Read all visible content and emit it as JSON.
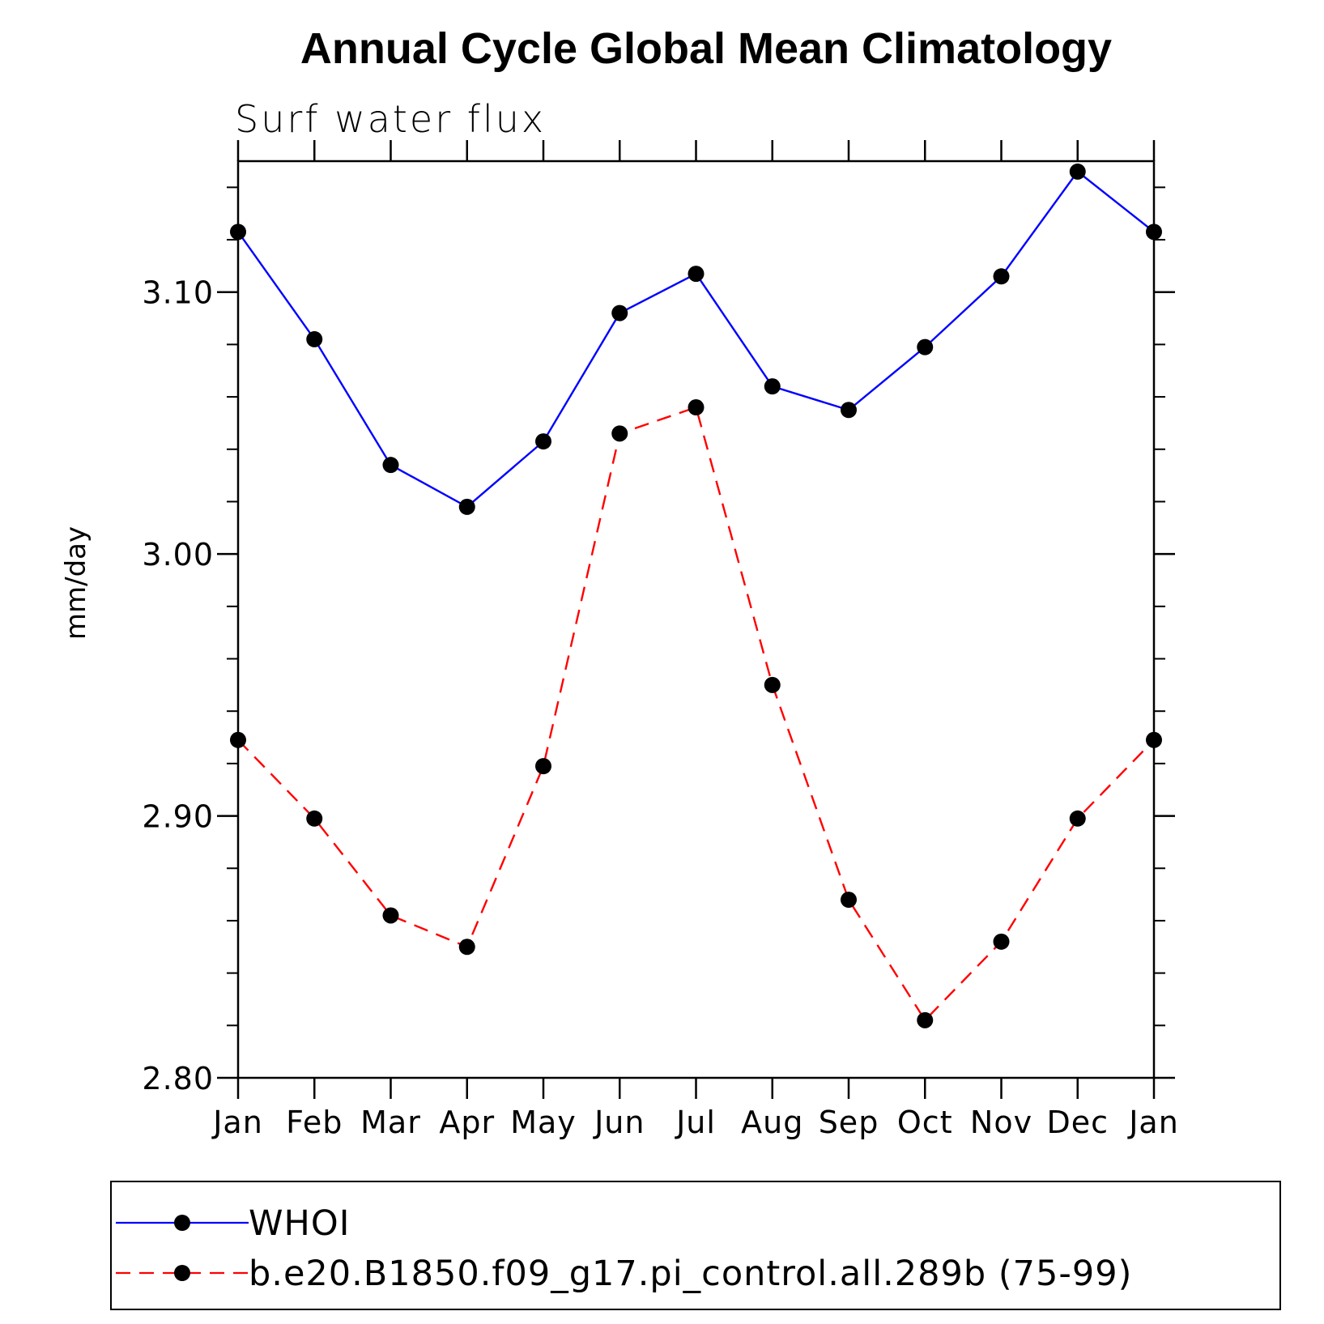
{
  "colors": {
    "whoi": "#0000ff",
    "model": "#ff0000",
    "marker": "#000000",
    "axis": "#000000"
  },
  "chart_data": {
    "type": "line",
    "title": "Annual Cycle Global Mean Climatology",
    "subtitle": "Surf water flux",
    "xlabel": "",
    "ylabel": "mm/day",
    "categories": [
      "Jan",
      "Feb",
      "Mar",
      "Apr",
      "May",
      "Jun",
      "Jul",
      "Aug",
      "Sep",
      "Oct",
      "Nov",
      "Dec",
      "Jan"
    ],
    "ylim": [
      2.8,
      3.15
    ],
    "yticks": [
      "2.80",
      "2.90",
      "3.00",
      "3.10"
    ],
    "ytick_values": [
      2.8,
      2.9,
      3.0,
      3.1
    ],
    "yminor_step": 0.02,
    "legend_position": "bottom",
    "series": [
      {
        "name": "WHOI",
        "style": "solid",
        "color": "#0000ff",
        "values": [
          3.123,
          3.082,
          3.034,
          3.018,
          3.043,
          3.092,
          3.107,
          3.064,
          3.055,
          3.079,
          3.106,
          3.146,
          3.123
        ]
      },
      {
        "name": "b.e20.B1850.f09_g17.pi_control.all.289b (75-99)",
        "style": "dashed",
        "color": "#ff0000",
        "values": [
          2.929,
          2.899,
          2.862,
          2.85,
          2.919,
          3.046,
          3.056,
          2.95,
          2.868,
          2.822,
          2.852,
          2.899,
          2.929
        ]
      }
    ]
  }
}
